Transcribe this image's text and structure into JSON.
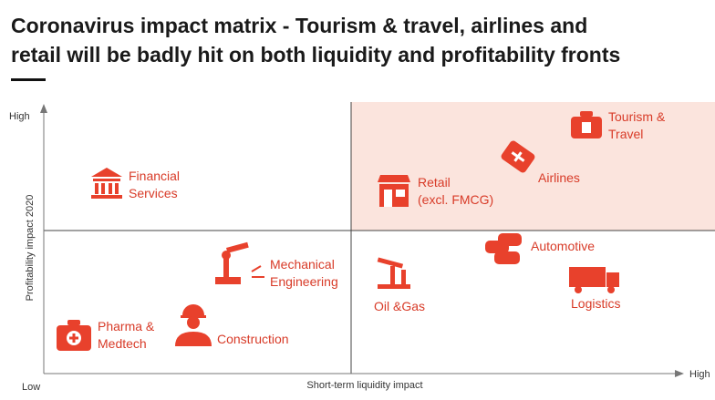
{
  "header": {
    "title_lines": [
      "Coronavirus impact matrix - Tourism & travel, airlines and",
      "retail will be badly hit on both liquidity and profitability fronts"
    ]
  },
  "y_axis": {
    "label": "Profitability impact 2020",
    "high": "High",
    "low": "Low"
  },
  "x_axis": {
    "label": "Short-term liquidity impact",
    "high": "High"
  },
  "items": [
    {
      "label_lines": [
        "Financial",
        "Services"
      ]
    },
    {
      "label_lines": [
        "Tourism &",
        "Travel"
      ]
    },
    {
      "label_lines": [
        "Airlines"
      ]
    },
    {
      "label_lines": [
        "Retail",
        "(excl. FMCG)"
      ]
    },
    {
      "label_lines": [
        "Automotive"
      ]
    },
    {
      "label_lines": [
        "Mechanical",
        "Engineering"
      ]
    },
    {
      "label_lines": [
        "Oil &Gas"
      ]
    },
    {
      "label_lines": [
        "Logistics"
      ]
    },
    {
      "label_lines": [
        "Pharma &",
        "Medtech"
      ]
    },
    {
      "label_lines": [
        "Construction"
      ]
    }
  ]
}
